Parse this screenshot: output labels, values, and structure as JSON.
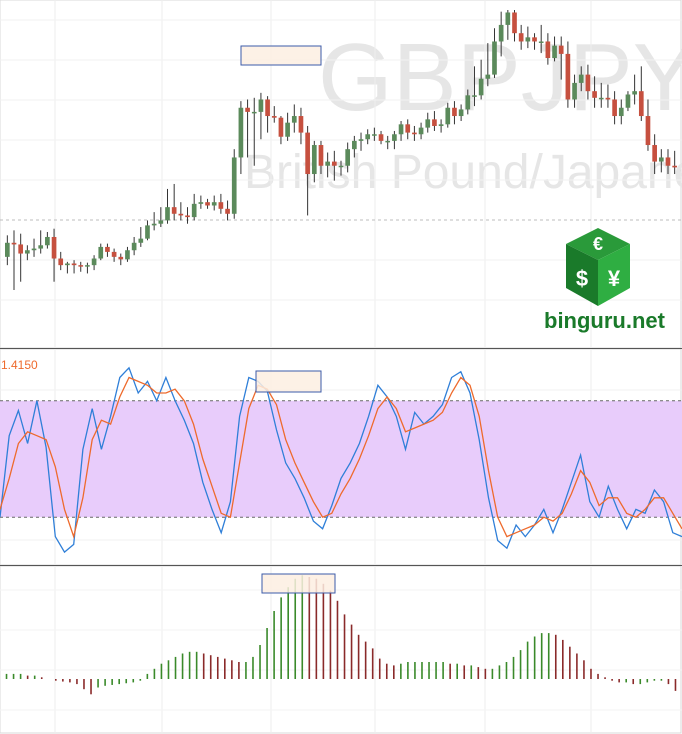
{
  "watermark": {
    "symbol": "GBPJPY",
    "name": "British Pound/Japanese Yen"
  },
  "logo": {
    "text": "binguru.net",
    "icon": "currency-cube-icon",
    "glyphs": [
      "€",
      "$",
      "¥"
    ]
  },
  "colors": {
    "up": "#5b8a5b",
    "down": "#c6503f",
    "stoch_k": "#2f7fd8",
    "stoch_d": "#ee6a2c",
    "overbought_band": "#e8ccfb",
    "hist_up": "#3a8a2a",
    "hist_down": "#8a2a2a",
    "highlight_fill": "#fdeee2",
    "highlight_border": "#3b5ba9",
    "level_label": "#ee6a2c",
    "logo_green": "#1a7a2a"
  },
  "chart_data": [
    {
      "type": "candlestick",
      "panel": "price",
      "x": [
        0,
        1,
        2,
        3,
        4,
        5,
        6,
        7,
        8,
        9,
        10,
        11,
        12,
        13,
        14,
        15,
        16,
        17,
        18,
        19,
        20,
        21,
        22,
        23,
        24,
        25,
        26,
        27,
        28,
        29,
        30,
        31,
        32,
        33,
        34,
        35,
        36,
        37,
        38,
        39,
        40,
        41,
        42,
        43,
        44,
        45,
        46,
        47,
        48,
        49,
        50,
        51,
        52,
        53,
        54,
        55,
        56,
        57,
        58,
        59,
        60,
        61,
        62,
        63,
        64,
        65,
        66,
        67,
        68,
        69,
        70,
        71,
        72,
        73,
        74,
        75,
        76,
        77,
        78,
        79,
        80,
        81,
        82,
        83,
        84,
        85,
        86,
        87,
        88,
        89,
        90,
        91,
        92,
        93,
        94,
        95,
        96,
        97,
        98,
        99,
        100
      ],
      "open": [
        20,
        37,
        35,
        24,
        28,
        30,
        34,
        44,
        18,
        10,
        12,
        10,
        9,
        10,
        18,
        32,
        26,
        20,
        17,
        28,
        37,
        42,
        58,
        60,
        64,
        80,
        72,
        70,
        68,
        84,
        86,
        82,
        86,
        78,
        72,
        140,
        200,
        195,
        195,
        210,
        190,
        188,
        165,
        182,
        190,
        170,
        120,
        155,
        130,
        135,
        130,
        130,
        150,
        160,
        162,
        168,
        168,
        160,
        160,
        168,
        180,
        170,
        168,
        176,
        186,
        178,
        180,
        200,
        190,
        198,
        215,
        215,
        235,
        240,
        280,
        300,
        315,
        290,
        280,
        285,
        280,
        280,
        260,
        275,
        265,
        210,
        230,
        240,
        220,
        212,
        212,
        210,
        190,
        200,
        216,
        220,
        190,
        155,
        135,
        140,
        130
      ],
      "close": [
        37,
        35,
        24,
        28,
        30,
        34,
        44,
        18,
        10,
        12,
        10,
        9,
        10,
        18,
        32,
        26,
        20,
        17,
        28,
        37,
        42,
        58,
        60,
        64,
        80,
        72,
        70,
        68,
        84,
        86,
        82,
        86,
        78,
        72,
        140,
        200,
        195,
        195,
        210,
        190,
        188,
        165,
        182,
        190,
        170,
        120,
        155,
        130,
        135,
        130,
        130,
        150,
        160,
        162,
        168,
        168,
        160,
        160,
        168,
        180,
        170,
        168,
        176,
        186,
        178,
        180,
        200,
        190,
        198,
        215,
        215,
        235,
        240,
        280,
        300,
        315,
        290,
        280,
        285,
        280,
        280,
        260,
        275,
        265,
        210,
        230,
        240,
        220,
        212,
        212,
        210,
        190,
        200,
        216,
        220,
        190,
        155,
        135,
        140,
        130,
        128
      ],
      "high": [
        46,
        52,
        48,
        34,
        42,
        52,
        50,
        54,
        26,
        14,
        16,
        14,
        13,
        22,
        36,
        36,
        30,
        24,
        32,
        44,
        56,
        64,
        74,
        80,
        102,
        108,
        86,
        80,
        96,
        94,
        90,
        94,
        96,
        88,
        150,
        208,
        210,
        212,
        218,
        214,
        202,
        190,
        194,
        204,
        200,
        178,
        160,
        160,
        146,
        148,
        136,
        158,
        166,
        170,
        174,
        176,
        172,
        166,
        172,
        184,
        186,
        178,
        182,
        194,
        196,
        186,
        206,
        208,
        204,
        222,
        250,
        258,
        278,
        296,
        316,
        318,
        318,
        300,
        298,
        290,
        300,
        290,
        286,
        286,
        280,
        240,
        250,
        252,
        238,
        230,
        228,
        220,
        210,
        220,
        240,
        250,
        210,
        168,
        150,
        150,
        148
      ],
      "low": [
        10,
        -20,
        -10,
        16,
        20,
        24,
        30,
        -10,
        4,
        0,
        0,
        2,
        0,
        4,
        16,
        20,
        14,
        10,
        14,
        22,
        32,
        40,
        52,
        56,
        60,
        64,
        64,
        60,
        64,
        78,
        78,
        76,
        72,
        64,
        66,
        120,
        140,
        130,
        162,
        170,
        182,
        156,
        160,
        170,
        156,
        70,
        110,
        120,
        116,
        112,
        118,
        122,
        140,
        148,
        156,
        160,
        156,
        150,
        150,
        160,
        162,
        160,
        162,
        170,
        172,
        170,
        176,
        180,
        184,
        192,
        202,
        210,
        226,
        236,
        262,
        282,
        280,
        270,
        272,
        270,
        266,
        252,
        256,
        234,
        200,
        200,
        220,
        210,
        200,
        200,
        200,
        180,
        180,
        196,
        204,
        184,
        148,
        120,
        122,
        120,
        120
      ],
      "note": "Values are relative price units read off the candle layout (no price scale printed on the chart)."
    },
    {
      "type": "line",
      "panel": "stochastic",
      "ylim": [
        0,
        100
      ],
      "reference_lines": [
        20,
        80
      ],
      "level_label": "1.4150",
      "series": [
        {
          "key": "k",
          "values": [
            20,
            62,
            75,
            58,
            80,
            56,
            10,
            2,
            6,
            55,
            76,
            55,
            72,
            92,
            97,
            84,
            90,
            80,
            92,
            80,
            70,
            58,
            38,
            24,
            12,
            28,
            72,
            92,
            90,
            85,
            65,
            48,
            40,
            30,
            18,
            14,
            26,
            40,
            48,
            58,
            72,
            88,
            82,
            72,
            55,
            74,
            68,
            72,
            78,
            92,
            95,
            84,
            60,
            30,
            8,
            4,
            16,
            10,
            16,
            24,
            12,
            24,
            38,
            52,
            28,
            20,
            36,
            24,
            14,
            24,
            22,
            34,
            28,
            12,
            10
          ]
        },
        {
          "key": "d",
          "values": [
            24,
            40,
            58,
            64,
            62,
            60,
            46,
            24,
            10,
            30,
            60,
            70,
            68,
            82,
            92,
            90,
            88,
            84,
            84,
            86,
            80,
            68,
            50,
            36,
            22,
            20,
            48,
            76,
            88,
            86,
            78,
            60,
            48,
            38,
            28,
            20,
            22,
            32,
            40,
            50,
            62,
            76,
            82,
            76,
            64,
            66,
            68,
            70,
            74,
            84,
            92,
            88,
            72,
            44,
            20,
            10,
            12,
            14,
            16,
            20,
            18,
            22,
            32,
            44,
            38,
            26,
            30,
            30,
            22,
            20,
            24,
            30,
            30,
            22,
            14
          ]
        }
      ]
    },
    {
      "type": "bar",
      "panel": "histogram",
      "values": [
        0.3,
        0.3,
        0.3,
        0.2,
        0.2,
        0.1,
        0,
        -0.1,
        -0.15,
        -0.2,
        -0.3,
        -0.6,
        -0.9,
        -0.5,
        -0.4,
        -0.35,
        -0.3,
        -0.25,
        -0.2,
        -0.1,
        0.3,
        0.6,
        0.9,
        1.1,
        1.3,
        1.5,
        1.6,
        1.6,
        1.5,
        1.4,
        1.3,
        1.2,
        1.1,
        1,
        1,
        1.3,
        2,
        3,
        4,
        4.8,
        5.4,
        5.9,
        6.1,
        6,
        5.9,
        5.6,
        5.2,
        4.6,
        3.8,
        3.2,
        2.6,
        2.2,
        1.8,
        1.2,
        0.9,
        0.8,
        0.9,
        1,
        1,
        1,
        1,
        1,
        1,
        0.9,
        0.9,
        0.8,
        0.8,
        0.7,
        0.6,
        0.6,
        0.8,
        1,
        1.3,
        1.7,
        2.2,
        2.5,
        2.7,
        2.7,
        2.6,
        2.3,
        1.9,
        1.5,
        1.1,
        0.6,
        0.3,
        0.1,
        -0.1,
        -0.2,
        -0.2,
        -0.3,
        -0.3,
        -0.2,
        -0.1,
        -0.1,
        -0.3,
        -0.7
      ]
    }
  ],
  "annotations": [
    {
      "panel": "price",
      "kind": "highlight-box"
    },
    {
      "panel": "stochastic",
      "kind": "highlight-box"
    },
    {
      "panel": "histogram",
      "kind": "highlight-box"
    }
  ]
}
